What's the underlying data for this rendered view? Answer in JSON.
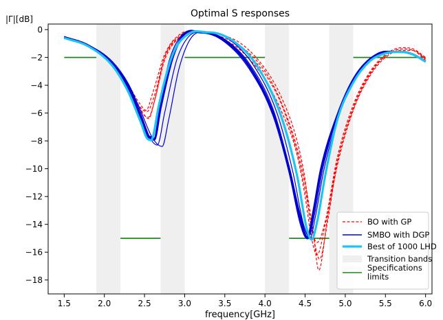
{
  "chart_data": {
    "type": "line",
    "title": "Optimal S responses",
    "xlabel": "frequency[GHz]",
    "ylabel": "|Γ|[dB]",
    "xlim": [
      1.3,
      6.08
    ],
    "ylim": [
      -19.0,
      0.4
    ],
    "xticks": [
      1.5,
      2.0,
      2.5,
      3.0,
      3.5,
      4.0,
      4.5,
      5.0,
      5.5,
      6.0
    ],
    "xtick_labels": [
      "1.5",
      "2.0",
      "2.5",
      "3.0",
      "3.5",
      "4.0",
      "4.5",
      "5.0",
      "5.5",
      "6.0"
    ],
    "yticks": [
      0,
      -2,
      -4,
      -6,
      -8,
      -10,
      -12,
      -14,
      -16,
      -18
    ],
    "ytick_labels": [
      "0",
      "−2",
      "−4",
      "−6",
      "−8",
      "−10",
      "−12",
      "−14",
      "−16",
      "−18"
    ],
    "grid": false,
    "legend_position": "bottom-right",
    "transition_bands": [
      [
        1.9,
        2.2
      ],
      [
        2.7,
        3.0
      ],
      [
        4.0,
        4.3
      ],
      [
        4.8,
        5.1
      ]
    ],
    "spec_limits": [
      {
        "x": [
          1.5,
          1.9
        ],
        "y": -2
      },
      {
        "x": [
          2.2,
          2.7
        ],
        "y": -15
      },
      {
        "x": [
          3.0,
          4.0
        ],
        "y": -2
      },
      {
        "x": [
          4.3,
          4.8
        ],
        "y": -15
      },
      {
        "x": [
          5.1,
          6.0
        ],
        "y": -2
      }
    ],
    "series": [
      {
        "name": "BO with GP",
        "color": "#ff0000",
        "style": "dashed",
        "width": 1.2,
        "legend": true,
        "x": [
          1.5,
          1.8,
          2.1,
          2.3,
          2.45,
          2.53,
          2.62,
          2.75,
          2.95,
          3.15,
          3.4,
          3.7,
          4.0,
          4.2,
          4.4,
          4.5,
          4.58,
          4.65,
          4.75,
          4.9,
          5.1,
          5.3,
          5.5,
          5.7,
          5.85,
          6.0
        ],
        "y": [
          -0.5,
          -1.1,
          -2.5,
          -4.2,
          -5.6,
          -5.9,
          -4.8,
          -2.0,
          -0.5,
          -0.2,
          -0.5,
          -1.5,
          -3.6,
          -5.8,
          -9.0,
          -12.0,
          -15.0,
          -16.2,
          -14.0,
          -9.5,
          -5.6,
          -3.2,
          -1.9,
          -1.4,
          -1.5,
          -2.1
        ]
      },
      {
        "color": "#ff0000",
        "style": "dashed",
        "width": 1.2,
        "x": [
          1.5,
          1.8,
          2.1,
          2.3,
          2.45,
          2.55,
          2.63,
          2.75,
          2.95,
          3.15,
          3.4,
          3.7,
          4.0,
          4.2,
          4.4,
          4.5,
          4.6,
          4.67,
          4.78,
          4.9,
          5.1,
          5.3,
          5.5,
          5.7,
          5.85,
          6.0
        ],
        "y": [
          -0.5,
          -1.1,
          -2.6,
          -4.4,
          -5.9,
          -6.3,
          -5.0,
          -2.2,
          -0.5,
          -0.15,
          -0.3,
          -1.2,
          -3.0,
          -5.2,
          -8.5,
          -11.0,
          -14.5,
          -17.3,
          -13.5,
          -9.8,
          -5.8,
          -3.4,
          -2.0,
          -1.5,
          -1.5,
          -2.1
        ]
      },
      {
        "color": "#ff0000",
        "style": "dashed",
        "width": 1.2,
        "x": [
          1.5,
          1.8,
          2.1,
          2.3,
          2.45,
          2.55,
          2.63,
          2.75,
          2.95,
          3.15,
          3.4,
          3.7,
          4.0,
          4.2,
          4.4,
          4.5,
          4.57,
          4.65,
          4.75,
          4.9,
          5.1,
          5.3,
          5.5,
          5.7,
          5.85,
          6.0
        ],
        "y": [
          -0.5,
          -1.1,
          -2.4,
          -4.0,
          -5.7,
          -6.4,
          -5.0,
          -2.0,
          -0.4,
          -0.2,
          -0.3,
          -1.0,
          -2.8,
          -4.8,
          -8.0,
          -10.8,
          -14.0,
          -15.3,
          -13.8,
          -9.2,
          -5.4,
          -3.1,
          -1.8,
          -1.3,
          -1.4,
          -2.0
        ]
      },
      {
        "color": "#ff0000",
        "style": "dashed",
        "width": 1.2,
        "x": [
          1.5,
          1.8,
          2.1,
          2.3,
          2.45,
          2.52,
          2.6,
          2.75,
          2.95,
          3.15,
          3.4,
          3.7,
          4.0,
          4.2,
          4.4,
          4.5,
          4.6,
          4.68,
          4.78,
          4.9,
          5.1,
          5.3,
          5.5,
          5.7,
          5.85,
          6.0
        ],
        "y": [
          -0.5,
          -1.1,
          -2.5,
          -4.0,
          -5.4,
          -5.8,
          -4.6,
          -1.8,
          -0.3,
          -0.15,
          -0.4,
          -1.3,
          -3.2,
          -5.3,
          -8.8,
          -11.5,
          -14.8,
          -16.5,
          -13.8,
          -9.6,
          -5.7,
          -3.3,
          -1.9,
          -1.4,
          -1.5,
          -2.2
        ]
      },
      {
        "name": "SMBO with DGP",
        "color": "#0000cd",
        "style": "solid",
        "width": 1.2,
        "legend": true,
        "x": [
          1.5,
          1.8,
          2.1,
          2.3,
          2.45,
          2.55,
          2.62,
          2.7,
          2.85,
          3.0,
          3.2,
          3.5,
          3.8,
          4.1,
          4.3,
          4.45,
          4.53,
          4.6,
          4.7,
          4.9,
          5.1,
          5.3,
          5.5,
          5.7,
          5.85,
          6.0
        ],
        "y": [
          -0.5,
          -1.1,
          -2.5,
          -4.2,
          -6.2,
          -7.6,
          -7.8,
          -5.5,
          -2.0,
          -0.3,
          -0.2,
          -0.8,
          -2.6,
          -6.0,
          -10.0,
          -13.8,
          -14.9,
          -13.0,
          -10.0,
          -6.2,
          -3.6,
          -2.2,
          -1.6,
          -1.6,
          -1.8,
          -2.3
        ]
      },
      {
        "color": "#0000cd",
        "style": "solid",
        "width": 1.2,
        "x": [
          1.5,
          1.8,
          2.1,
          2.3,
          2.45,
          2.57,
          2.66,
          2.75,
          2.9,
          3.05,
          3.25,
          3.5,
          3.8,
          4.1,
          4.3,
          4.45,
          4.55,
          4.62,
          4.72,
          4.9,
          5.1,
          5.3,
          5.5,
          5.7,
          5.85,
          6.0
        ],
        "y": [
          -0.5,
          -1.1,
          -2.4,
          -4.0,
          -6.0,
          -7.8,
          -8.3,
          -6.0,
          -2.2,
          -0.5,
          -0.2,
          -0.7,
          -2.4,
          -5.7,
          -9.8,
          -13.5,
          -14.8,
          -13.2,
          -10.0,
          -6.3,
          -3.7,
          -2.3,
          -1.7,
          -1.6,
          -1.8,
          -2.3
        ]
      },
      {
        "color": "#0000cd",
        "style": "solid",
        "width": 1.2,
        "x": [
          1.5,
          1.8,
          2.1,
          2.3,
          2.45,
          2.6,
          2.72,
          2.8,
          2.93,
          3.08,
          3.3,
          3.55,
          3.85,
          4.15,
          4.35,
          4.48,
          4.56,
          4.63,
          4.73,
          4.9,
          5.1,
          5.3,
          5.5,
          5.7,
          5.85,
          6.0
        ],
        "y": [
          -0.5,
          -1.1,
          -2.3,
          -3.9,
          -5.8,
          -7.8,
          -8.4,
          -6.5,
          -2.8,
          -0.6,
          -0.2,
          -0.7,
          -2.5,
          -6.0,
          -10.3,
          -14.0,
          -15.0,
          -13.4,
          -10.2,
          -6.5,
          -3.8,
          -2.3,
          -1.7,
          -1.6,
          -1.8,
          -2.3
        ]
      },
      {
        "color": "#0000cd",
        "style": "solid",
        "width": 1.2,
        "x": [
          1.5,
          1.8,
          2.1,
          2.3,
          2.45,
          2.55,
          2.6,
          2.68,
          2.82,
          2.98,
          3.2,
          3.5,
          3.8,
          4.1,
          4.3,
          4.44,
          4.52,
          4.6,
          4.7,
          4.9,
          5.1,
          5.3,
          5.5,
          5.7,
          5.85,
          6.0
        ],
        "y": [
          -0.6,
          -1.2,
          -2.6,
          -4.4,
          -6.4,
          -7.6,
          -7.7,
          -5.5,
          -2.0,
          -0.3,
          -0.2,
          -0.9,
          -2.8,
          -6.2,
          -10.3,
          -14.0,
          -15.0,
          -13.0,
          -9.9,
          -6.1,
          -3.5,
          -2.1,
          -1.6,
          -1.6,
          -1.8,
          -2.3
        ]
      },
      {
        "color": "#0000cd",
        "style": "solid",
        "width": 3.2,
        "x": [
          1.5,
          1.8,
          2.1,
          2.3,
          2.45,
          2.55,
          2.62,
          2.7,
          2.85,
          3.0,
          3.2,
          3.5,
          3.8,
          4.1,
          4.3,
          4.45,
          4.53,
          4.6,
          4.7,
          4.9,
          5.1,
          5.3,
          5.5,
          5.7,
          5.85,
          6.0
        ],
        "y": [
          -0.55,
          -1.15,
          -2.5,
          -4.2,
          -6.3,
          -7.7,
          -7.9,
          -5.6,
          -2.0,
          -0.3,
          -0.2,
          -0.8,
          -2.6,
          -6.0,
          -10.0,
          -13.8,
          -15.0,
          -13.2,
          -10.0,
          -6.2,
          -3.6,
          -2.2,
          -1.6,
          -1.6,
          -1.8,
          -2.3
        ]
      },
      {
        "name": "Best of 1000 LHD",
        "color": "#1ec3f0",
        "style": "solid",
        "width": 3.2,
        "legend": true,
        "x": [
          1.5,
          1.8,
          2.1,
          2.3,
          2.45,
          2.55,
          2.6,
          2.68,
          2.85,
          3.05,
          3.3,
          3.6,
          3.9,
          4.2,
          4.4,
          4.52,
          4.58,
          4.65,
          4.75,
          4.9,
          5.1,
          5.3,
          5.5,
          5.7,
          5.85,
          6.0
        ],
        "y": [
          -0.6,
          -1.2,
          -2.6,
          -4.5,
          -6.6,
          -7.9,
          -7.8,
          -5.4,
          -1.8,
          -0.3,
          -0.2,
          -0.8,
          -2.6,
          -6.2,
          -10.5,
          -14.3,
          -15.1,
          -13.8,
          -10.5,
          -6.5,
          -3.8,
          -2.3,
          -1.7,
          -1.6,
          -1.8,
          -2.3
        ]
      }
    ],
    "legend": [
      {
        "label": "BO with GP",
        "kind": "dashed-line",
        "color": "#ff0000"
      },
      {
        "label": "SMBO with DGP",
        "kind": "line",
        "color": "#0000cd"
      },
      {
        "label": "Best of 1000 LHD",
        "kind": "thick-line",
        "color": "#1ec3f0"
      },
      {
        "label": "Transition bands",
        "kind": "patch",
        "color": "#efefef"
      },
      {
        "label": [
          "Specifications",
          "limits"
        ],
        "kind": "line",
        "color": "#238023"
      }
    ],
    "band_color": "#efefef",
    "spec_color": "#238023"
  }
}
